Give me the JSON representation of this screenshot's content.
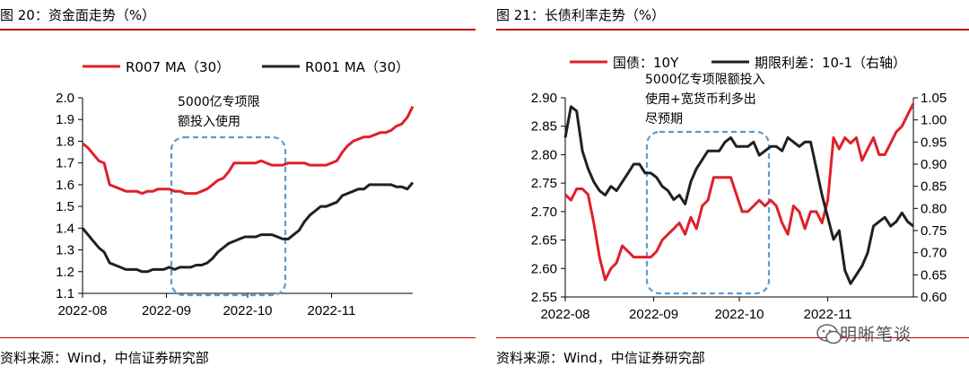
{
  "left": {
    "title": "图 20：资金面走势（%）",
    "source": "资料来源：Wind，中信证券研究部",
    "annotation": [
      "5000亿专项限",
      "额投入使用"
    ]
  },
  "right": {
    "title": "图 21：长债利率走势（%）",
    "source": "资料来源：Wind，中信证券研究部",
    "annotation": [
      "5000亿专项限额投入",
      "使用+宽货币利多出",
      "尽预期"
    ]
  },
  "watermark": {
    "text": "明晰笔谈",
    "icon": "wechat-icon"
  },
  "colors": {
    "red": "#e0202a",
    "black": "#231f20",
    "dashed": "#5b9bd5",
    "rule": "#c00000"
  },
  "chart_data": [
    {
      "type": "line",
      "title": "",
      "xlabel": "",
      "ylabel": "",
      "x": [
        0,
        2,
        4,
        6,
        8,
        10,
        12,
        14,
        16,
        18,
        20,
        22,
        24,
        26,
        28,
        30,
        32,
        34,
        36,
        38,
        40,
        42,
        44,
        46,
        48,
        50,
        52,
        54,
        56,
        58,
        60,
        62,
        64,
        66,
        68,
        70,
        72,
        74,
        76,
        78,
        80,
        82,
        84,
        86,
        88,
        90,
        92,
        94,
        96,
        98,
        100,
        102,
        104,
        106,
        108,
        110,
        112,
        114,
        116,
        118,
        120,
        122
      ],
      "x_tick_labels": [
        "2022-08",
        "2022-09",
        "2022-10",
        "2022-11"
      ],
      "x_tick_positions": [
        0,
        31,
        61,
        92
      ],
      "ylim": [
        1.1,
        2.0
      ],
      "yticks": [
        "1.1",
        "1.2",
        "1.3",
        "1.4",
        "1.5",
        "1.6",
        "1.7",
        "1.8",
        "1.9",
        "2.0"
      ],
      "legend": "top",
      "grid": false,
      "series": [
        {
          "name": "R007 MA（30）",
          "color": "#e0202a",
          "values": [
            1.79,
            1.77,
            1.74,
            1.71,
            1.7,
            1.6,
            1.59,
            1.58,
            1.57,
            1.57,
            1.57,
            1.56,
            1.57,
            1.57,
            1.58,
            1.58,
            1.58,
            1.57,
            1.57,
            1.56,
            1.56,
            1.56,
            1.57,
            1.58,
            1.6,
            1.62,
            1.63,
            1.66,
            1.7,
            1.7,
            1.7,
            1.7,
            1.7,
            1.71,
            1.7,
            1.69,
            1.69,
            1.69,
            1.7,
            1.7,
            1.7,
            1.7,
            1.69,
            1.69,
            1.69,
            1.69,
            1.7,
            1.71,
            1.75,
            1.78,
            1.8,
            1.81,
            1.82,
            1.82,
            1.83,
            1.84,
            1.84,
            1.85,
            1.87,
            1.88,
            1.91,
            1.96
          ]
        },
        {
          "name": "R001 MA（30）",
          "color": "#231f20",
          "values": [
            1.4,
            1.37,
            1.34,
            1.31,
            1.29,
            1.24,
            1.23,
            1.22,
            1.21,
            1.21,
            1.21,
            1.2,
            1.2,
            1.21,
            1.21,
            1.21,
            1.22,
            1.21,
            1.22,
            1.22,
            1.22,
            1.23,
            1.23,
            1.24,
            1.26,
            1.29,
            1.31,
            1.33,
            1.34,
            1.35,
            1.36,
            1.36,
            1.36,
            1.37,
            1.37,
            1.37,
            1.36,
            1.35,
            1.35,
            1.37,
            1.39,
            1.43,
            1.46,
            1.48,
            1.5,
            1.5,
            1.51,
            1.52,
            1.55,
            1.56,
            1.57,
            1.58,
            1.58,
            1.6,
            1.6,
            1.6,
            1.6,
            1.6,
            1.59,
            1.59,
            1.58,
            1.61
          ]
        }
      ]
    },
    {
      "type": "line",
      "title": "",
      "xlabel": "",
      "ylabel": "",
      "x": [
        0,
        2,
        4,
        6,
        8,
        10,
        12,
        14,
        16,
        18,
        20,
        22,
        24,
        26,
        28,
        30,
        32,
        34,
        36,
        38,
        40,
        42,
        44,
        46,
        48,
        50,
        52,
        54,
        56,
        58,
        60,
        62,
        64,
        66,
        68,
        70,
        72,
        74,
        76,
        78,
        80,
        82,
        84,
        86,
        88,
        90,
        92,
        94,
        96,
        98,
        100,
        102,
        104,
        106,
        108,
        110,
        112,
        114,
        116,
        118,
        120,
        122
      ],
      "x_tick_labels": [
        "2022-08",
        "2022-09",
        "2022-10",
        "2022-11"
      ],
      "x_tick_positions": [
        0,
        31,
        61,
        92
      ],
      "ylim": [
        2.55,
        2.9
      ],
      "yticks": [
        "2.55",
        "2.60",
        "2.65",
        "2.70",
        "2.75",
        "2.80",
        "2.85",
        "2.90"
      ],
      "y2lim": [
        0.6,
        1.05
      ],
      "y2ticks": [
        "0.60",
        "0.65",
        "0.70",
        "0.75",
        "0.80",
        "0.85",
        "0.90",
        "0.95",
        "1.00",
        "1.05"
      ],
      "legend": "top",
      "grid": false,
      "series": [
        {
          "name": "国债：10Y",
          "color": "#e0202a",
          "axis": "left",
          "values": [
            2.73,
            2.72,
            2.74,
            2.74,
            2.73,
            2.68,
            2.62,
            2.58,
            2.6,
            2.61,
            2.64,
            2.63,
            2.62,
            2.62,
            2.62,
            2.62,
            2.63,
            2.65,
            2.66,
            2.67,
            2.68,
            2.66,
            2.69,
            2.67,
            2.71,
            2.72,
            2.76,
            2.76,
            2.76,
            2.76,
            2.73,
            2.7,
            2.7,
            2.71,
            2.72,
            2.71,
            2.72,
            2.71,
            2.68,
            2.66,
            2.71,
            2.7,
            2.67,
            2.7,
            2.7,
            2.68,
            2.72,
            2.83,
            2.81,
            2.83,
            2.82,
            2.83,
            2.79,
            2.81,
            2.83,
            2.8,
            2.8,
            2.82,
            2.84,
            2.85,
            2.87,
            2.89
          ]
        },
        {
          "name": "期限利差：10-1（右轴）",
          "color": "#231f20",
          "axis": "right",
          "values": [
            0.96,
            1.03,
            1.02,
            0.93,
            0.89,
            0.86,
            0.84,
            0.83,
            0.85,
            0.84,
            0.86,
            0.88,
            0.9,
            0.9,
            0.88,
            0.88,
            0.87,
            0.85,
            0.84,
            0.82,
            0.83,
            0.81,
            0.86,
            0.89,
            0.91,
            0.93,
            0.93,
            0.93,
            0.95,
            0.96,
            0.94,
            0.94,
            0.94,
            0.95,
            0.92,
            0.93,
            0.94,
            0.94,
            0.93,
            0.96,
            0.95,
            0.94,
            0.95,
            0.95,
            0.89,
            0.83,
            0.78,
            0.73,
            0.75,
            0.66,
            0.63,
            0.65,
            0.67,
            0.7,
            0.76,
            0.77,
            0.78,
            0.76,
            0.77,
            0.79,
            0.77,
            0.76
          ]
        }
      ]
    }
  ]
}
